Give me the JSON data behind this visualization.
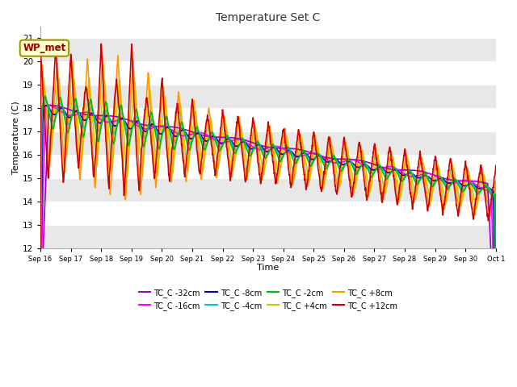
{
  "title": "Temperature Set C",
  "xlabel": "Time",
  "ylabel": "Temperature (C)",
  "ylim": [
    12.0,
    21.5
  ],
  "yticks": [
    12.0,
    13.0,
    14.0,
    15.0,
    16.0,
    17.0,
    18.0,
    19.0,
    20.0,
    21.0
  ],
  "xtick_labels": [
    "Sep 16",
    "Sep 17",
    "Sep 18",
    "Sep 19",
    "Sep 20",
    "Sep 21",
    "Sep 22",
    "Sep 23",
    "Sep 24",
    "Sep 25",
    "Sep 26",
    "Sep 27",
    "Sep 28",
    "Sep 29",
    "Sep 30",
    "Oct 1"
  ],
  "series": [
    {
      "label": "TC_C -32cm",
      "color": "#9900cc"
    },
    {
      "label": "TC_C -16cm",
      "color": "#ff00ff"
    },
    {
      "label": "TC_C -8cm",
      "color": "#0000bb"
    },
    {
      "label": "TC_C -4cm",
      "color": "#00cccc"
    },
    {
      "label": "TC_C -2cm",
      "color": "#00bb00"
    },
    {
      "label": "TC_C +4cm",
      "color": "#cccc00"
    },
    {
      "label": "TC_C +8cm",
      "color": "#ff9900"
    },
    {
      "label": "TC_C +12cm",
      "color": "#cc0000"
    }
  ],
  "wp_met_label": "WP_met",
  "wp_met_text_color": "#8b0000",
  "wp_met_bg": "#ffffcc",
  "wp_met_edge": "#999900",
  "bg_color": "#ffffff",
  "grid_color": "#e0e0e0",
  "n_days": 15,
  "pts_per_day": 144,
  "seed": 42
}
